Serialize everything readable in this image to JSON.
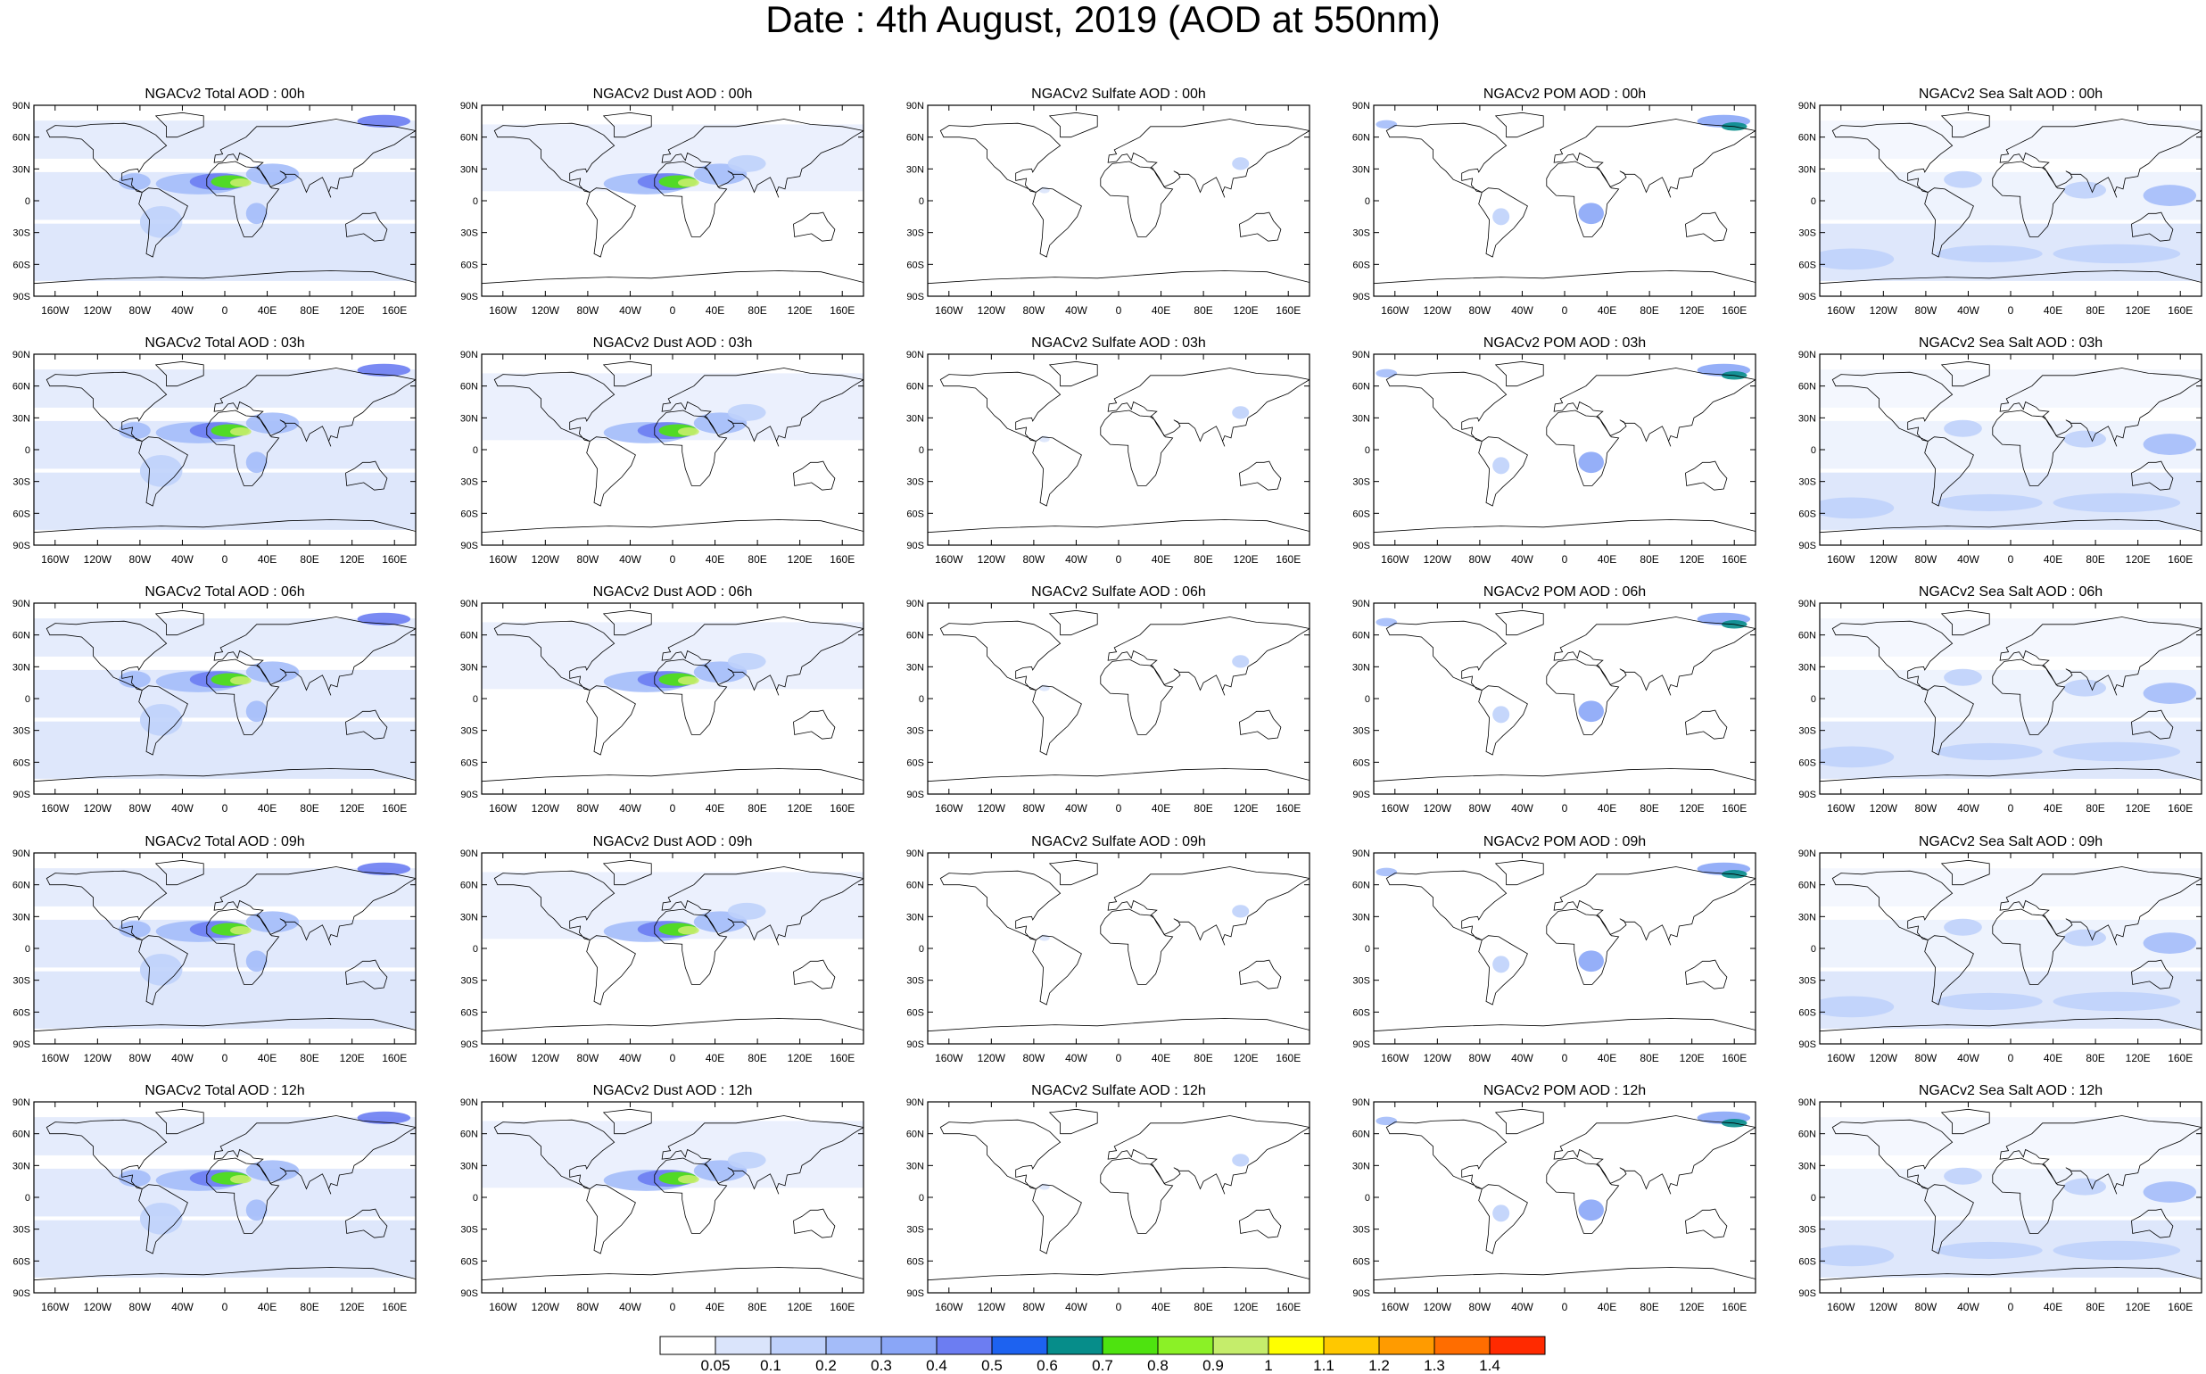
{
  "title": "Date : 4th August, 2019 (AOD at 550nm)",
  "rows": [
    "00h",
    "03h",
    "06h",
    "09h",
    "12h"
  ],
  "columns": [
    {
      "key": "total",
      "titles": [
        "NGACv2 Total AOD : 00h",
        "NGACv2 Total AOD : 03h",
        "NGACv2 Total AOD : 06h",
        "NGACv2 Total AOD : 09h",
        "NGACv2 Total AOD  : 12h"
      ]
    },
    {
      "key": "dust",
      "titles": [
        "NGACv2 Dust AOD : 00h",
        "NGACv2 Dust AOD : 03h",
        "NGACv2 Dust AOD : 06h",
        "NGACv2 Dust AOD : 09h",
        "NGACv2 Dust AOD : 12h"
      ]
    },
    {
      "key": "sulfate",
      "titles": [
        "NGACv2 Sulfate AOD : 00h",
        "NGACv2 Sulfate AOD : 03h",
        "NGACv2 Sulfate AOD : 06h",
        "NGACv2 Sulfate AOD : 09h",
        "NGACv2 Sulfate AOD : 12h"
      ]
    },
    {
      "key": "pom",
      "titles": [
        "NGACv2 POM AOD : 00h",
        "NGACv2 POM AOD : 03h",
        "NGACv2 POM AOD : 06h",
        "NGACv2 POM AOD : 09h",
        "NGACv2 POM  AOD : 12h"
      ]
    },
    {
      "key": "seasalt",
      "titles": [
        "NGACv2 Sea Salt AOD : 00h",
        "NGACv2 Sea Salt AOD : 03h",
        "NGACv2 Sea Salt AOD : 06h",
        "NGACv2 Sea Salt  AOD : 09h",
        "NGACv2 Sea Salt AOD : 12h"
      ]
    }
  ],
  "lat_ticks": [
    "90N",
    "60N",
    "30N",
    "0",
    "30S",
    "60S",
    "90S"
  ],
  "lon_ticks": [
    "160W",
    "120W",
    "80W",
    "40W",
    "0",
    "40E",
    "80E",
    "120E",
    "160E"
  ],
  "colorbar": {
    "labels": [
      "0.05",
      "0.1",
      "0.2",
      "0.3",
      "0.4",
      "0.5",
      "0.6",
      "0.7",
      "0.8",
      "0.9",
      "1",
      "1.1",
      "1.2",
      "1.3",
      "1.4"
    ],
    "colors": [
      "#ffffff",
      "#dae4fb",
      "#bfd1fb",
      "#a4bcf9",
      "#8aa6f7",
      "#6c7df2",
      "#1d62f0",
      "#068d8a",
      "#4ee30f",
      "#8bf126",
      "#c5ed6b",
      "#ffff00",
      "#ffc800",
      "#ff9b00",
      "#ff6d00",
      "#ff2a00"
    ]
  },
  "palette": {
    "ocean_light": "#dae4fb",
    "land": "#ffffff",
    "coast": "#000000"
  }
}
